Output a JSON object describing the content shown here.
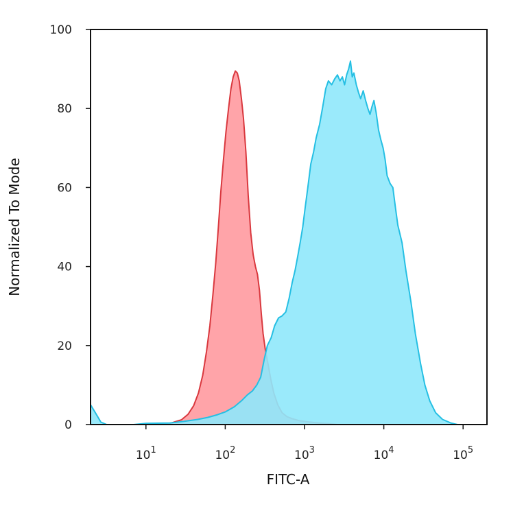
{
  "chart_data": {
    "type": "area",
    "title": "",
    "xlabel": "FITC-A",
    "ylabel": "Normalized To Mode",
    "x_scale": "log",
    "xlim": [
      2,
      200000
    ],
    "ylim": [
      0,
      100
    ],
    "x_ticks": [
      {
        "value": 10,
        "base": "10",
        "exp": "1"
      },
      {
        "value": 100,
        "base": "10",
        "exp": "2"
      },
      {
        "value": 1000,
        "base": "10",
        "exp": "3"
      },
      {
        "value": 10000,
        "base": "10",
        "exp": "4"
      },
      {
        "value": 100000,
        "base": "10",
        "exp": "5"
      }
    ],
    "y_ticks": [
      {
        "value": 0,
        "label": "0"
      },
      {
        "value": 20,
        "label": "20"
      },
      {
        "value": 40,
        "label": "40"
      },
      {
        "value": 60,
        "label": "60"
      },
      {
        "value": 80,
        "label": "80"
      },
      {
        "value": 100,
        "label": "100"
      }
    ],
    "grid": false,
    "legend": "none",
    "series": [
      {
        "fill": "#ff9aa0",
        "stroke": "#d9383e",
        "opacity": 0.9,
        "points": [
          [
            12,
            0.0
          ],
          [
            20,
            0.3
          ],
          [
            28,
            1.2
          ],
          [
            34,
            2.6
          ],
          [
            40,
            4.8
          ],
          [
            46,
            8.0
          ],
          [
            52,
            12.5
          ],
          [
            58,
            18.5
          ],
          [
            64,
            25.0
          ],
          [
            70,
            33.0
          ],
          [
            76,
            41.0
          ],
          [
            82,
            50.0
          ],
          [
            88,
            59.0
          ],
          [
            95,
            67.0
          ],
          [
            102,
            74.0
          ],
          [
            110,
            80.0
          ],
          [
            118,
            85.0
          ],
          [
            126,
            88.0
          ],
          [
            134,
            89.5
          ],
          [
            142,
            89.0
          ],
          [
            150,
            87.0
          ],
          [
            160,
            82.5
          ],
          [
            170,
            77.5
          ],
          [
            182,
            69.0
          ],
          [
            195,
            58.0
          ],
          [
            210,
            48.5
          ],
          [
            225,
            43.0
          ],
          [
            240,
            40.0
          ],
          [
            255,
            38.0
          ],
          [
            270,
            34.0
          ],
          [
            285,
            28.0
          ],
          [
            300,
            23.0
          ],
          [
            320,
            19.0
          ],
          [
            345,
            15.5
          ],
          [
            375,
            11.5
          ],
          [
            410,
            8.0
          ],
          [
            460,
            5.0
          ],
          [
            520,
            3.0
          ],
          [
            600,
            2.0
          ],
          [
            700,
            1.5
          ],
          [
            850,
            1.0
          ],
          [
            1100,
            0.7
          ],
          [
            1500,
            0.4
          ],
          [
            2000,
            0.2
          ],
          [
            2600,
            0.0
          ]
        ]
      },
      {
        "fill": "#8fe8fb",
        "stroke": "#25bfe3",
        "opacity": 0.9,
        "points": [
          [
            2,
            5.0
          ],
          [
            2.3,
            3.0
          ],
          [
            2.7,
            0.6
          ],
          [
            3.2,
            0.0
          ],
          [
            7,
            0.0
          ],
          [
            10,
            0.3
          ],
          [
            20,
            0.4
          ],
          [
            30,
            0.8
          ],
          [
            45,
            1.3
          ],
          [
            60,
            1.8
          ],
          [
            80,
            2.5
          ],
          [
            100,
            3.2
          ],
          [
            130,
            4.5
          ],
          [
            160,
            6.0
          ],
          [
            190,
            7.5
          ],
          [
            220,
            8.5
          ],
          [
            250,
            10.0
          ],
          [
            280,
            12.0
          ],
          [
            310,
            16.5
          ],
          [
            340,
            20.0
          ],
          [
            380,
            22.0
          ],
          [
            420,
            25.0
          ],
          [
            470,
            27.0
          ],
          [
            520,
            27.5
          ],
          [
            580,
            28.5
          ],
          [
            640,
            32.0
          ],
          [
            700,
            36.0
          ],
          [
            760,
            39.0
          ],
          [
            820,
            42.5
          ],
          [
            880,
            46.0
          ],
          [
            950,
            50.0
          ],
          [
            1020,
            55.0
          ],
          [
            1100,
            60.0
          ],
          [
            1200,
            66.0
          ],
          [
            1300,
            69.0
          ],
          [
            1400,
            72.5
          ],
          [
            1550,
            76.0
          ],
          [
            1700,
            80.5
          ],
          [
            1850,
            85.0
          ],
          [
            2000,
            87.0
          ],
          [
            2200,
            86.0
          ],
          [
            2400,
            87.5
          ],
          [
            2600,
            88.5
          ],
          [
            2800,
            87.0
          ],
          [
            3000,
            88.0
          ],
          [
            3200,
            86.0
          ],
          [
            3400,
            88.5
          ],
          [
            3600,
            90.0
          ],
          [
            3800,
            92.0
          ],
          [
            4000,
            88.0
          ],
          [
            4200,
            89.0
          ],
          [
            4500,
            86.0
          ],
          [
            4800,
            84.0
          ],
          [
            5100,
            82.5
          ],
          [
            5500,
            84.5
          ],
          [
            5900,
            82.0
          ],
          [
            6300,
            80.0
          ],
          [
            6700,
            78.5
          ],
          [
            7100,
            80.5
          ],
          [
            7500,
            82.0
          ],
          [
            8000,
            79.0
          ],
          [
            8600,
            74.5
          ],
          [
            9200,
            72.0
          ],
          [
            9800,
            70.0
          ],
          [
            10400,
            67.0
          ],
          [
            11000,
            63.0
          ],
          [
            12000,
            61.0
          ],
          [
            13000,
            60.0
          ],
          [
            14000,
            55.0
          ],
          [
            15000,
            50.5
          ],
          [
            17000,
            46.0
          ],
          [
            19000,
            39.0
          ],
          [
            22000,
            31.0
          ],
          [
            25000,
            23.0
          ],
          [
            29000,
            15.5
          ],
          [
            33000,
            10.0
          ],
          [
            38000,
            6.0
          ],
          [
            45000,
            3.0
          ],
          [
            55000,
            1.3
          ],
          [
            70000,
            0.4
          ],
          [
            85000,
            0.0
          ]
        ]
      }
    ]
  }
}
